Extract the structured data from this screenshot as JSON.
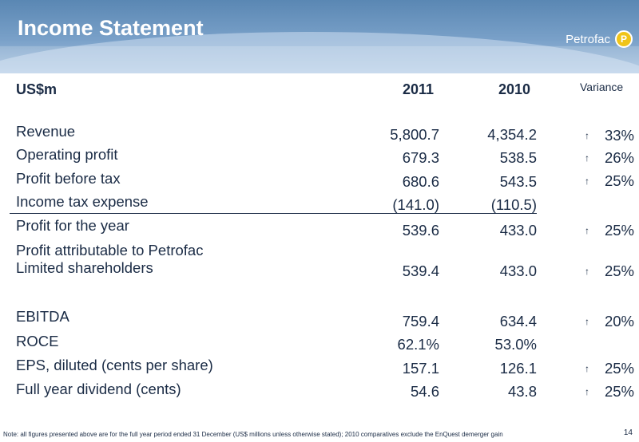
{
  "title": "Income Statement",
  "brand": "Petrofac",
  "brand_mark": "P",
  "headers": {
    "label": "US$m",
    "y2011": "2011",
    "y2010": "2010",
    "variance": "Variance"
  },
  "rows": [
    {
      "label": "Revenue",
      "v2011": "5,800.7",
      "v2010": "4,354.2",
      "variance": "33%",
      "arrow": "↑"
    },
    {
      "label": "Operating profit",
      "v2011": "679.3",
      "v2010": "538.5",
      "variance": "26%",
      "arrow": "↑"
    },
    {
      "label": "Profit before tax",
      "v2011": "680.6",
      "v2010": "543.5",
      "variance": "25%",
      "arrow": "↑"
    },
    {
      "label": "Income tax expense",
      "v2011": "(141.0)",
      "v2010": "(110.5)",
      "variance": "",
      "arrow": ""
    },
    {
      "label": "Profit for the year",
      "v2011": "539.6",
      "v2010": "433.0",
      "variance": "25%",
      "arrow": "↑"
    },
    {
      "label": "Profit attributable to Petrofac",
      "label2": "Limited shareholders",
      "v2011": "539.4",
      "v2010": "433.0",
      "variance": "25%",
      "arrow": "↑"
    },
    {
      "label": "EBITDA",
      "v2011": "759.4",
      "v2010": "634.4",
      "variance": "20%",
      "arrow": "↑"
    },
    {
      "label": "ROCE",
      "v2011": "62.1%",
      "v2010": "53.0%",
      "variance": "",
      "arrow": ""
    },
    {
      "label": "EPS, diluted (cents per share)",
      "v2011": "157.1",
      "v2010": "126.1",
      "variance": "25%",
      "arrow": "↑"
    },
    {
      "label": "Full year dividend (cents)",
      "v2011": "54.6",
      "v2010": "43.8",
      "variance": "25%",
      "arrow": "↑"
    }
  ],
  "footnote": "Note: all figures presented above are for the full year period ended 31 December (US$ millions unless otherwise stated); 2010 comparatives exclude the EnQuest demerger gain",
  "page_number": "14"
}
